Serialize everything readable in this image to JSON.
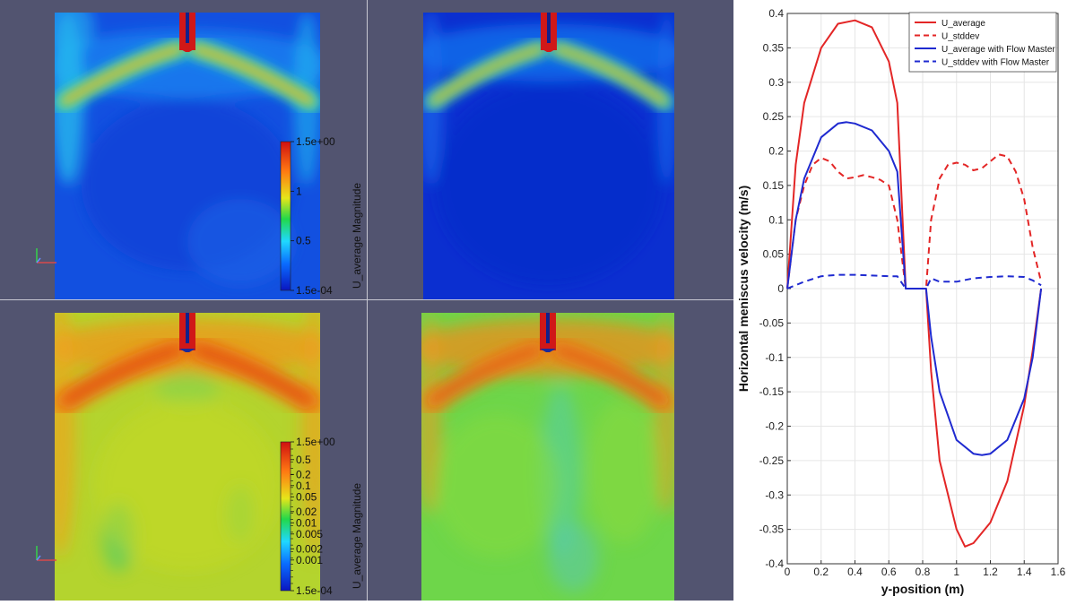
{
  "panes": [
    {
      "id": "top-left",
      "colorbar": {
        "title": "U_average Magnitude",
        "labels": [
          "1.5e+00",
          "1",
          "0.5",
          "1.5e-04"
        ],
        "scale": "linear"
      }
    },
    {
      "id": "top-right"
    },
    {
      "id": "bottom-left",
      "colorbar": {
        "title": "U_average Magnitude",
        "labels": [
          "1.5e+00",
          "0.5",
          "0.2",
          "0.1",
          "0.05",
          "0.02",
          "0.01",
          "0.005",
          "0.002",
          "0.001",
          "1.5e-04"
        ],
        "scale": "log"
      }
    },
    {
      "id": "bottom-right"
    }
  ],
  "colors": {
    "background": "#525470",
    "jet_low": "#0a2fb0",
    "jet_high": "#d01010",
    "red_series": "#e32626",
    "blue_series": "#1f2ad0"
  },
  "chart_data": {
    "type": "line",
    "title": "",
    "xlabel": "y-position (m)",
    "ylabel": "Horizontal meniscus velocity (m/s)",
    "xlim": [
      0,
      1.6
    ],
    "ylim": [
      -0.4,
      0.4
    ],
    "xticks": [
      "0",
      "0.2",
      "0.4",
      "0.6",
      "0.8",
      "1",
      "1.2",
      "1.4",
      "1.6"
    ],
    "yticks": [
      "0.4",
      "0.35",
      "0.3",
      "0.25",
      "0.2",
      "0.15",
      "0.1",
      "0.05",
      "0",
      "-0.05",
      "-0.1",
      "-0.15",
      "-0.2",
      "-0.25",
      "-0.3",
      "-0.35",
      "-0.4"
    ],
    "grid": true,
    "legend_position": "top-right",
    "series": [
      {
        "name": "U_average",
        "color": "#e32626",
        "dash": false,
        "x": [
          0,
          0.05,
          0.1,
          0.2,
          0.3,
          0.4,
          0.5,
          0.6,
          0.65,
          0.7,
          0.8,
          0.82,
          0.85,
          0.9,
          1.0,
          1.05,
          1.1,
          1.2,
          1.3,
          1.4,
          1.45,
          1.5
        ],
        "y": [
          0,
          0.18,
          0.27,
          0.35,
          0.385,
          0.39,
          0.38,
          0.33,
          0.27,
          0,
          0,
          0,
          -0.12,
          -0.25,
          -0.35,
          -0.375,
          -0.37,
          -0.34,
          -0.28,
          -0.17,
          -0.09,
          0
        ]
      },
      {
        "name": "U_stddev",
        "color": "#e32626",
        "dash": true,
        "x": [
          0,
          0.05,
          0.1,
          0.15,
          0.2,
          0.25,
          0.3,
          0.35,
          0.4,
          0.45,
          0.5,
          0.55,
          0.6,
          0.65,
          0.7,
          0.8,
          0.82,
          0.85,
          0.9,
          0.95,
          1.0,
          1.05,
          1.1,
          1.15,
          1.2,
          1.25,
          1.3,
          1.35,
          1.4,
          1.45,
          1.5
        ],
        "y": [
          0,
          0.1,
          0.15,
          0.18,
          0.19,
          0.185,
          0.17,
          0.16,
          0.162,
          0.165,
          0.162,
          0.158,
          0.15,
          0.1,
          0,
          0,
          0,
          0.1,
          0.16,
          0.18,
          0.183,
          0.18,
          0.172,
          0.175,
          0.185,
          0.195,
          0.192,
          0.17,
          0.13,
          0.06,
          0.01
        ]
      },
      {
        "name": "U_average with Flow Master",
        "color": "#1f2ad0",
        "dash": false,
        "x": [
          0,
          0.05,
          0.1,
          0.2,
          0.3,
          0.35,
          0.4,
          0.5,
          0.6,
          0.65,
          0.7,
          0.8,
          0.82,
          0.85,
          0.9,
          1.0,
          1.1,
          1.15,
          1.2,
          1.3,
          1.4,
          1.45,
          1.5
        ],
        "y": [
          0,
          0.1,
          0.16,
          0.22,
          0.24,
          0.242,
          0.24,
          0.23,
          0.2,
          0.17,
          0,
          0,
          0,
          -0.07,
          -0.15,
          -0.22,
          -0.24,
          -0.242,
          -0.24,
          -0.22,
          -0.16,
          -0.1,
          0
        ]
      },
      {
        "name": "U_stddev with Flow Master",
        "color": "#1f2ad0",
        "dash": true,
        "x": [
          0,
          0.1,
          0.2,
          0.3,
          0.4,
          0.5,
          0.6,
          0.65,
          0.7,
          0.8,
          0.82,
          0.85,
          0.9,
          1.0,
          1.1,
          1.2,
          1.3,
          1.4,
          1.45,
          1.5
        ],
        "y": [
          0,
          0.01,
          0.018,
          0.02,
          0.02,
          0.019,
          0.018,
          0.018,
          0,
          0,
          0,
          0.015,
          0.01,
          0.01,
          0.015,
          0.017,
          0.018,
          0.017,
          0.012,
          0.005
        ]
      }
    ]
  }
}
